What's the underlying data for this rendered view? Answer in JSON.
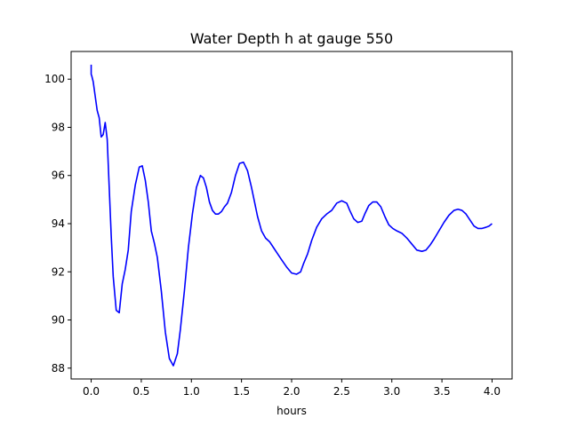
{
  "chart_data": {
    "type": "line",
    "title": "Water Depth h at gauge 550",
    "xlabel": "hours",
    "ylabel": "",
    "xlim": [
      -0.2,
      4.2
    ],
    "ylim": [
      87.55,
      101.15
    ],
    "xticks": [
      0.0,
      0.5,
      1.0,
      1.5,
      2.0,
      2.5,
      3.0,
      3.5,
      4.0
    ],
    "xtick_labels": [
      "0.0",
      "0.5",
      "1.0",
      "1.5",
      "2.0",
      "2.5",
      "3.0",
      "3.5",
      "4.0"
    ],
    "yticks": [
      88,
      90,
      92,
      94,
      96,
      98,
      100
    ],
    "ytick_labels": [
      "88",
      "90",
      "92",
      "94",
      "96",
      "98",
      "100"
    ],
    "grid": false,
    "series": [
      {
        "color": "#0000ff",
        "x": [
          0.0,
          0.0,
          0.005,
          0.02,
          0.04,
          0.06,
          0.08,
          0.1,
          0.12,
          0.14,
          0.16,
          0.18,
          0.2,
          0.22,
          0.25,
          0.28,
          0.31,
          0.34,
          0.37,
          0.4,
          0.44,
          0.48,
          0.51,
          0.54,
          0.57,
          0.6,
          0.63,
          0.66,
          0.7,
          0.74,
          0.78,
          0.82,
          0.86,
          0.89,
          0.93,
          0.97,
          1.01,
          1.05,
          1.09,
          1.12,
          1.15,
          1.18,
          1.21,
          1.24,
          1.27,
          1.3,
          1.33,
          1.36,
          1.4,
          1.44,
          1.48,
          1.52,
          1.56,
          1.6,
          1.63,
          1.66,
          1.7,
          1.74,
          1.78,
          1.82,
          1.86,
          1.9,
          1.95,
          2.0,
          2.05,
          2.09,
          2.12,
          2.16,
          2.2,
          2.25,
          2.3,
          2.35,
          2.4,
          2.45,
          2.5,
          2.55,
          2.58,
          2.62,
          2.66,
          2.7,
          2.73,
          2.77,
          2.81,
          2.85,
          2.89,
          2.93,
          2.97,
          3.01,
          3.05,
          3.1,
          3.15,
          3.2,
          3.25,
          3.3,
          3.34,
          3.38,
          3.42,
          3.47,
          3.52,
          3.57,
          3.62,
          3.66,
          3.7,
          3.74,
          3.78,
          3.82,
          3.86,
          3.9,
          3.94,
          3.97,
          4.0
        ],
        "y": [
          100.6,
          100.2,
          100.15,
          99.9,
          99.3,
          98.7,
          98.4,
          97.6,
          97.7,
          98.2,
          97.5,
          95.5,
          93.5,
          91.8,
          90.4,
          90.3,
          91.5,
          92.1,
          92.9,
          94.5,
          95.6,
          96.35,
          96.4,
          95.8,
          94.9,
          93.7,
          93.2,
          92.6,
          91.2,
          89.5,
          88.4,
          88.1,
          88.6,
          89.6,
          91.2,
          93.0,
          94.4,
          95.5,
          96.0,
          95.9,
          95.5,
          94.9,
          94.55,
          94.4,
          94.4,
          94.5,
          94.7,
          94.85,
          95.3,
          96.0,
          96.5,
          96.55,
          96.2,
          95.5,
          94.9,
          94.3,
          93.7,
          93.4,
          93.25,
          93.0,
          92.75,
          92.5,
          92.2,
          91.95,
          91.9,
          92.0,
          92.35,
          92.75,
          93.3,
          93.85,
          94.2,
          94.4,
          94.55,
          94.85,
          94.95,
          94.85,
          94.55,
          94.2,
          94.05,
          94.1,
          94.4,
          94.75,
          94.9,
          94.9,
          94.7,
          94.3,
          93.95,
          93.8,
          93.7,
          93.6,
          93.4,
          93.15,
          92.9,
          92.85,
          92.9,
          93.1,
          93.35,
          93.7,
          94.05,
          94.35,
          94.55,
          94.6,
          94.55,
          94.4,
          94.15,
          93.9,
          93.8,
          93.8,
          93.85,
          93.9,
          94.0
        ]
      }
    ]
  }
}
